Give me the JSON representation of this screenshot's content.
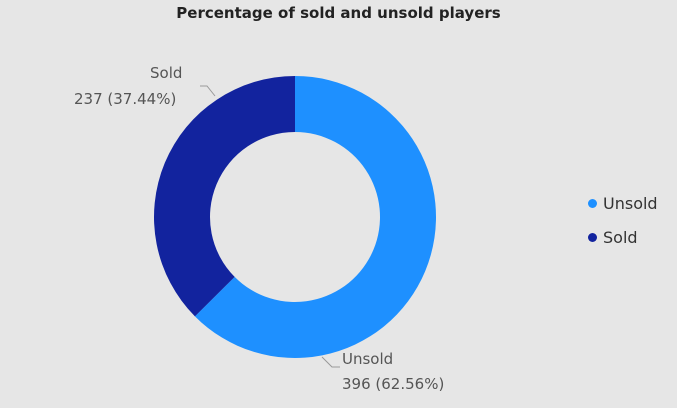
{
  "chart_data": {
    "type": "pie",
    "title": "Percentage of sold and unsold players",
    "donut": true,
    "slices": [
      {
        "name": "Unsold",
        "value": 396,
        "percent_label": "396 (62.56%)",
        "color": "#1e90ff"
      },
      {
        "name": "Sold",
        "value": 237,
        "percent_label": "237 (37.44%)",
        "color": "#12239e"
      }
    ],
    "legend_position": "right",
    "legend": [
      "Unsold",
      "Sold"
    ]
  }
}
